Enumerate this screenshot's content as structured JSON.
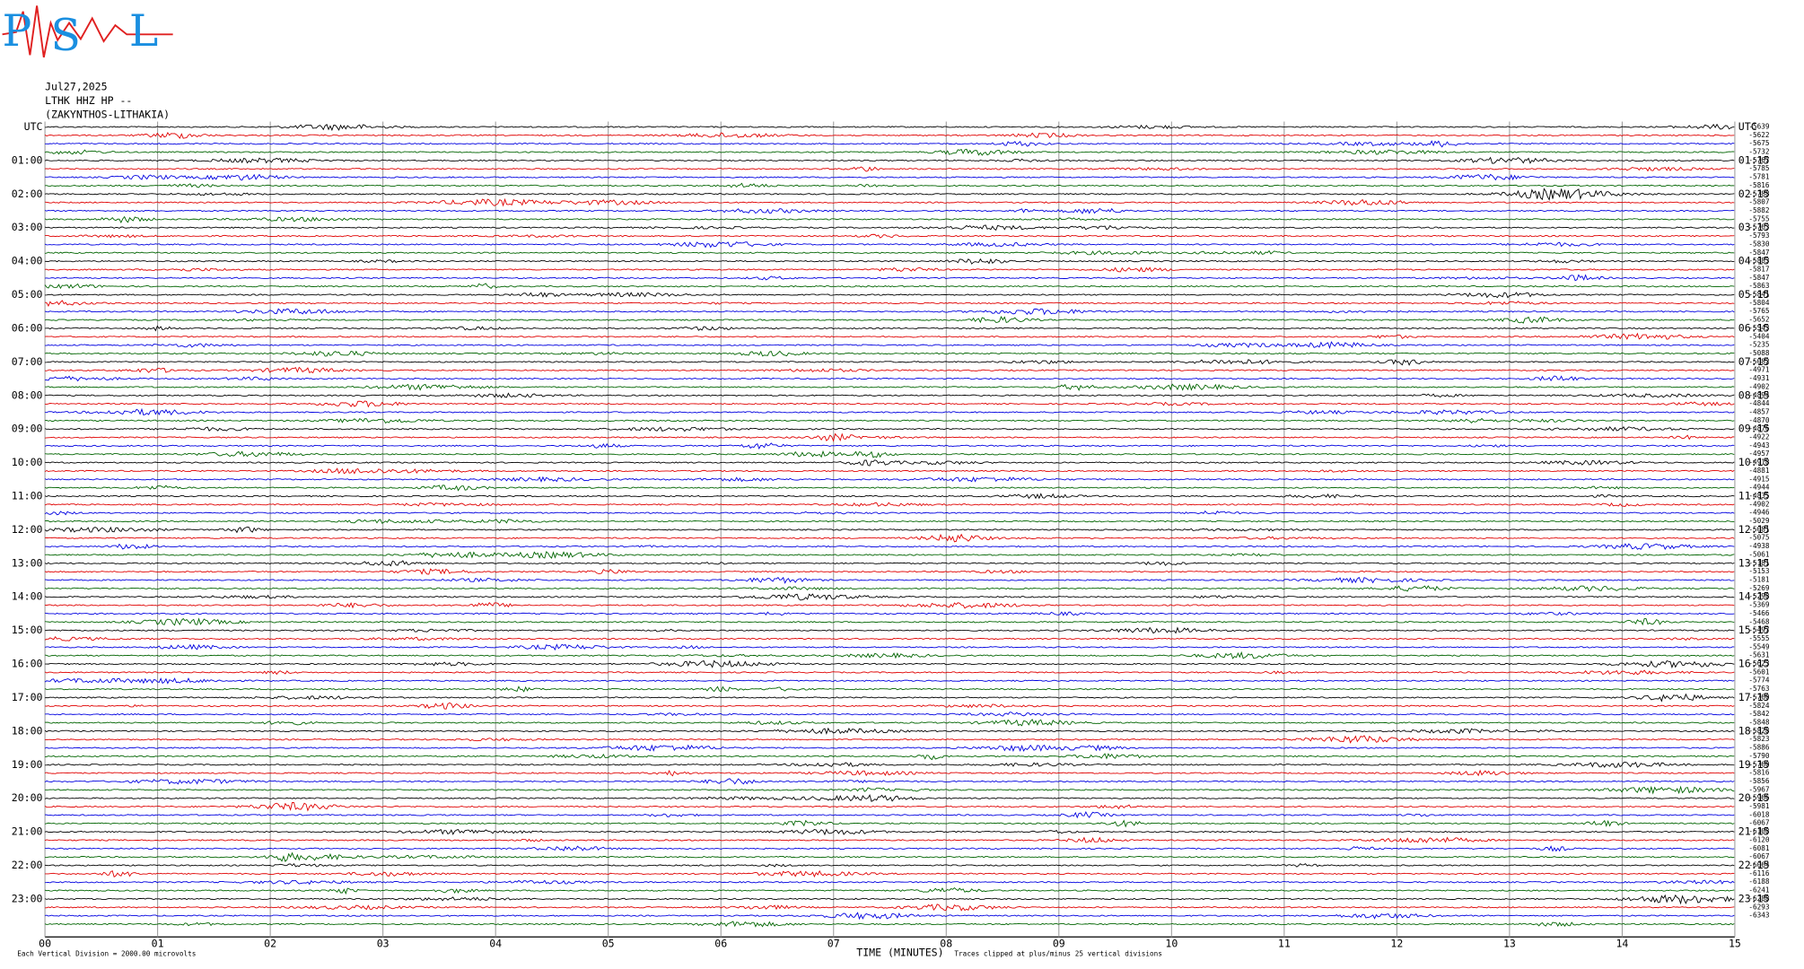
{
  "logo": {
    "letters": [
      "P",
      "S",
      "L"
    ]
  },
  "header": {
    "date": "Jul27,2025",
    "station": "LTHK HHZ HP --",
    "location": "(ZAKYNTHOS-LITHAKIA)"
  },
  "left_labels": [
    "UTC",
    "01:00",
    "02:00",
    "03:00",
    "04:00",
    "05:00",
    "06:00",
    "07:00",
    "08:00",
    "09:00",
    "10:00",
    "11:00",
    "12:00",
    "13:00",
    "14:00",
    "15:00",
    "16:00",
    "17:00",
    "18:00",
    "19:00",
    "20:00",
    "21:00",
    "22:00",
    "23:00"
  ],
  "right_labels": [
    "UTC",
    "01:15",
    "02:15",
    "03:15",
    "04:15",
    "05:15",
    "06:15",
    "07:15",
    "08:15",
    "09:15",
    "10:15",
    "11:15",
    "12:15",
    "13:15",
    "14:15",
    "15:15",
    "16:15",
    "17:15",
    "18:15",
    "19:15",
    "20:15",
    "21:15",
    "22:15",
    "23:15"
  ],
  "trace_offsets": [
    -5639,
    -5622,
    -5675,
    -5732,
    -5767,
    -5785,
    -5781,
    -5816,
    -5788,
    -5807,
    -5882,
    -5755,
    -5763,
    -5793,
    -5830,
    -5847,
    -5883,
    -5817,
    -5847,
    -5863,
    -5841,
    -5804,
    -5765,
    -5652,
    -5543,
    -5404,
    -5235,
    -5088,
    -5082,
    -4971,
    -4931,
    -4902,
    -4894,
    -4844,
    -4857,
    -4870,
    -4876,
    -4922,
    -4943,
    -4957,
    -4918,
    -4881,
    -4915,
    -4944,
    -4835,
    -4902,
    -4946,
    -5029,
    -5081,
    -5075,
    -4938,
    -5061,
    -5181,
    -5153,
    -5181,
    -5269,
    -5298,
    -5369,
    -5466,
    -5468,
    -5497,
    -5555,
    -5549,
    -5631,
    -5623,
    -5601,
    -5774,
    -5763,
    -5760,
    -5824,
    -5842,
    -5848,
    -5828,
    -5823,
    -5886,
    -5790,
    -5760,
    -5816,
    -5856,
    -5967,
    -5966,
    -5981,
    -6018,
    -6067,
    -6108,
    -6120,
    -6081,
    -6067,
    -6064,
    -6116,
    -6188,
    -6241,
    -6288,
    -6293,
    -6343
  ],
  "x_labels": [
    "00",
    "01",
    "02",
    "03",
    "04",
    "05",
    "06",
    "07",
    "08",
    "09",
    "10",
    "11",
    "12",
    "13",
    "14",
    "15"
  ],
  "footer": {
    "axis_title": "TIME (MINUTES)",
    "division": "Each Vertical Division = 2000.00 microvolts",
    "clip": "Traces clipped at plus/minus 25 vertical divisions"
  }
}
